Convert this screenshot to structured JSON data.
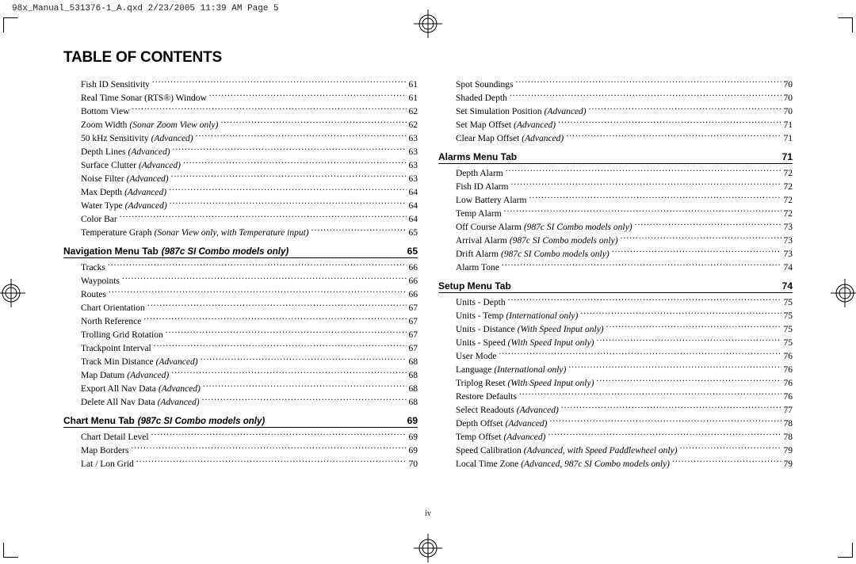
{
  "header_line": "98x_Manual_531376-1_A.qxd  2/23/2005  11:39 AM  Page 5",
  "title": "TABLE OF CONTENTS",
  "folio": "iv",
  "left": {
    "top": [
      {
        "label": "Fish ID Sensitivity",
        "page": "61"
      },
      {
        "label": "Real Time Sonar (RTS®) Window",
        "page": "61"
      },
      {
        "label": "Bottom View",
        "page": "62"
      },
      {
        "label": "Zoom Width",
        "paren": "(Sonar Zoom View only)",
        "page": "62"
      },
      {
        "label": "50 kHz Sensitivity",
        "paren": "(Advanced)",
        "page": "63"
      },
      {
        "label": "Depth Lines",
        "paren": "(Advanced)",
        "page": "63"
      },
      {
        "label": "Surface Clutter",
        "paren": "(Advanced)",
        "page": "63"
      },
      {
        "label": "Noise Filter",
        "paren": "(Advanced)",
        "page": "63"
      },
      {
        "label": "Max Depth",
        "paren": "(Advanced)",
        "page": "64"
      },
      {
        "label": "Water Type",
        "paren": "(Advanced)",
        "page": "64"
      },
      {
        "label": "Color Bar",
        "page": "64"
      },
      {
        "label": "Temperature Graph",
        "paren": "(Sonar View only, with Temperature input)",
        "page": "65"
      }
    ],
    "sec1": {
      "title": "Navigation Menu Tab",
      "paren": "(987c SI Combo models only)",
      "page": "65"
    },
    "sec1_items": [
      {
        "label": "Tracks",
        "page": "66"
      },
      {
        "label": "Waypoints",
        "page": "66"
      },
      {
        "label": "Routes",
        "page": "66"
      },
      {
        "label": "Chart Orientation",
        "page": "67"
      },
      {
        "label": "North Reference",
        "page": "67"
      },
      {
        "label": "Trolling Grid Rotation",
        "page": "67"
      },
      {
        "label": "Trackpoint Interval",
        "page": "67"
      },
      {
        "label": "Track Min Distance",
        "paren": "(Advanced)",
        "page": "68"
      },
      {
        "label": "Map Datum",
        "paren": "(Advanced)",
        "page": "68"
      },
      {
        "label": "Export All Nav Data",
        "paren": "(Advanced)",
        "page": "68"
      },
      {
        "label": "Delete All Nav Data",
        "paren": "(Advanced)",
        "page": "68"
      }
    ],
    "sec2": {
      "title": "Chart Menu Tab",
      "paren": "(987c SI Combo models only)",
      "page": "69"
    },
    "sec2_items": [
      {
        "label": "Chart Detail Level",
        "page": "69"
      },
      {
        "label": "Map Borders",
        "page": "69"
      },
      {
        "label": "Lat / Lon Grid",
        "page": "70"
      }
    ]
  },
  "right": {
    "top": [
      {
        "label": "Spot Soundings",
        "page": "70"
      },
      {
        "label": "Shaded Depth",
        "page": "70"
      },
      {
        "label": "Set Simulation Position",
        "paren": "(Advanced)",
        "page": "70"
      },
      {
        "label": "Set Map Offset",
        "paren": "(Advanced)",
        "page": "71"
      },
      {
        "label": "Clear Map Offset",
        "paren": "(Advanced)",
        "page": "71"
      }
    ],
    "sec1": {
      "title": "Alarms Menu Tab",
      "page": "71"
    },
    "sec1_items": [
      {
        "label": "Depth Alarm",
        "page": "72"
      },
      {
        "label": "Fish ID Alarm",
        "page": "72"
      },
      {
        "label": "Low Battery Alarm",
        "page": "72"
      },
      {
        "label": "Temp Alarm",
        "page": "72"
      },
      {
        "label": "Off Course Alarm",
        "paren": "(987c SI Combo models only)",
        "page": "73"
      },
      {
        "label": "Arrival Alarm",
        "paren": "(987c SI Combo models only)",
        "page": "73"
      },
      {
        "label": "Drift Alarm",
        "paren": "(987c SI Combo models only)",
        "page": "73"
      },
      {
        "label": "Alarm Tone",
        "page": "74"
      }
    ],
    "sec2": {
      "title": "Setup Menu Tab",
      "page": "74"
    },
    "sec2_items": [
      {
        "label": "Units - Depth",
        "page": "75"
      },
      {
        "label": "Units - Temp",
        "paren": "(International only)",
        "page": "75"
      },
      {
        "label": "Units - Distance",
        "paren": "(With Speed Input only)",
        "page": "75"
      },
      {
        "label": "Units - Speed",
        "paren": "(With Speed Input only)",
        "page": "75"
      },
      {
        "label": "User Mode",
        "page": "76"
      },
      {
        "label": "Language",
        "paren": "(International only)",
        "page": "76"
      },
      {
        "label": "Triplog Reset",
        "paren": "(With Speed Input only)",
        "page": "76"
      },
      {
        "label": "Restore Defaults",
        "page": "76"
      },
      {
        "label": "Select Readouts",
        "paren": "(Advanced)",
        "page": "77"
      },
      {
        "label": "Depth Offset",
        "paren": "(Advanced)",
        "page": "78"
      },
      {
        "label": "Temp Offset",
        "paren": "(Advanced)",
        "page": "78"
      },
      {
        "label": "Speed Calibration",
        "paren": "(Advanced, with Speed Paddlewheel only)",
        "page": "79"
      },
      {
        "label": "Local Time Zone",
        "paren": "(Advanced, 987c SI Combo models only)",
        "page": "79"
      }
    ]
  }
}
